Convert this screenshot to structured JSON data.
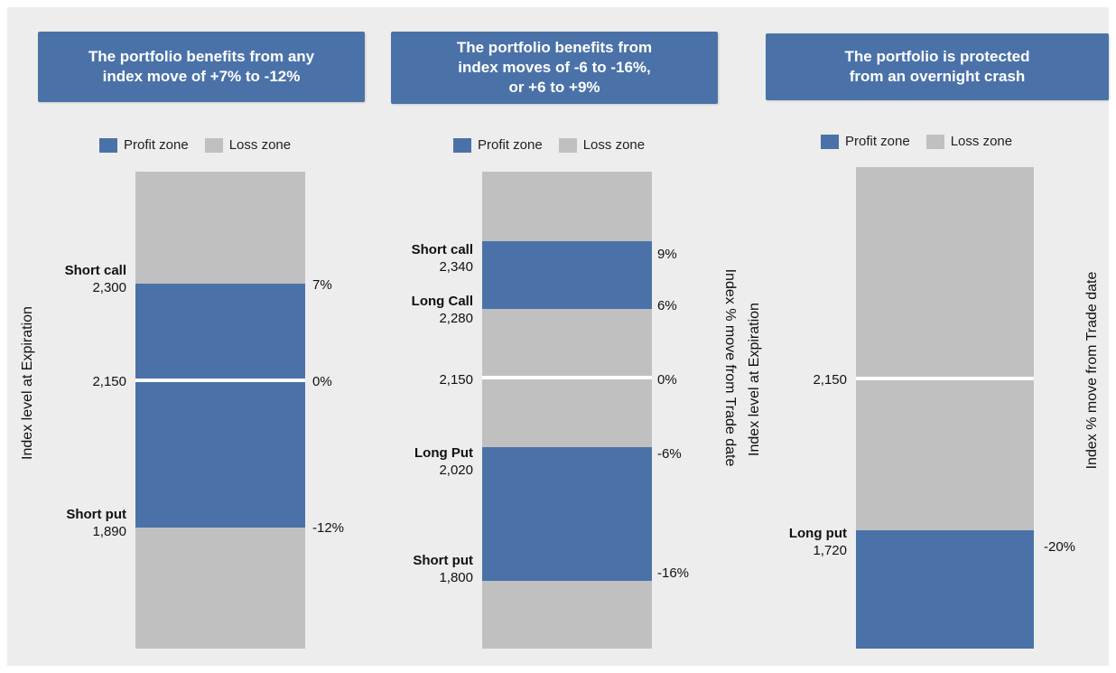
{
  "colors": {
    "profit": "#4a72a8",
    "loss": "#c0c0c0",
    "background": "#ededed",
    "header": "#4a72a8"
  },
  "legend": {
    "profit_label": "Profit zone",
    "loss_label": "Loss zone"
  },
  "axis_left_label": "Index level at Expiration",
  "axis_right_label": "Index % move from Trade date",
  "panels": [
    {
      "header": [
        "The portfolio benefits from any",
        "index move of +7% to -12%"
      ]
    },
    {
      "header": [
        "The portfolio benefits from",
        "index moves of -6 to -16%,",
        "or +6 to +9%"
      ]
    },
    {
      "header": [
        "The portfolio is protected",
        "from an overnight crash"
      ]
    }
  ],
  "chart_data": [
    {
      "type": "bar",
      "title": "The portfolio benefits from any index move of +7% to -12%",
      "ylabel": "Index level at Expiration",
      "y2label": "Index % move from Trade date",
      "baseline": {
        "level": "2,150",
        "pct": "0%"
      },
      "strikes": [
        {
          "name": "Short call",
          "level": "2,300",
          "pct": "7%"
        },
        {
          "name": "Short put",
          "level": "1,890",
          "pct": "-12%"
        }
      ],
      "profit_zones": [
        {
          "from_pct": -12,
          "to_pct": 7
        }
      ]
    },
    {
      "type": "bar",
      "title": "The portfolio benefits from index moves of -6 to -16%, or +6 to +9%",
      "ylabel": "Index level at Expiration",
      "y2label": "Index % move from Trade date",
      "baseline": {
        "level": "2,150",
        "pct": "0%"
      },
      "strikes": [
        {
          "name": "Short call",
          "level": "2,340",
          "pct": "9%"
        },
        {
          "name": "Long Call",
          "level": "2,280",
          "pct": "6%"
        },
        {
          "name": "Long Put",
          "level": "2,020",
          "pct": "-6%"
        },
        {
          "name": "Short put",
          "level": "1,800",
          "pct": "-16%"
        }
      ],
      "profit_zones": [
        {
          "from_pct": 6,
          "to_pct": 9
        },
        {
          "from_pct": -16,
          "to_pct": -6
        }
      ]
    },
    {
      "type": "bar",
      "title": "The portfolio is protected from an overnight crash",
      "ylabel": "Index level at Expiration",
      "y2label": "Index % move from Trade date",
      "baseline": {
        "level": "2,150",
        "pct": ""
      },
      "strikes": [
        {
          "name": "Long put",
          "level": "1,720",
          "pct": "-20%"
        }
      ],
      "profit_zones": [
        {
          "from_pct": null,
          "to_pct": -20
        }
      ]
    }
  ]
}
